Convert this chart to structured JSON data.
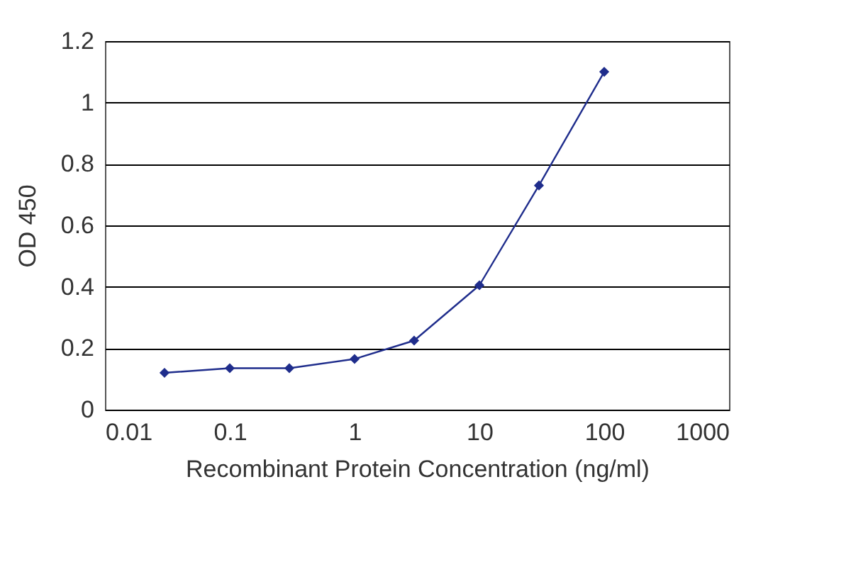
{
  "chart_data": {
    "type": "line",
    "xlabel": "Recombinant Protein Concentration (ng/ml)",
    "ylabel": "OD 450",
    "x": [
      0.03,
      0.1,
      0.3,
      1,
      3,
      10,
      30,
      100
    ],
    "series": [
      {
        "color": "#1f2d8c",
        "values": [
          0.12,
          0.135,
          0.135,
          0.165,
          0.225,
          0.405,
          0.73,
          1.1
        ]
      }
    ],
    "log": "x",
    "xlim": [
      0.01,
      1000
    ],
    "xticks": [
      0.01,
      0.1,
      1,
      10,
      100,
      1000
    ],
    "ylim": [
      0,
      1.2
    ],
    "yticks": [
      0,
      0.2,
      0.4,
      0.6,
      0.8,
      1,
      1.2
    ],
    "grid": "y",
    "marker": "diamond",
    "line_style": "solid"
  }
}
